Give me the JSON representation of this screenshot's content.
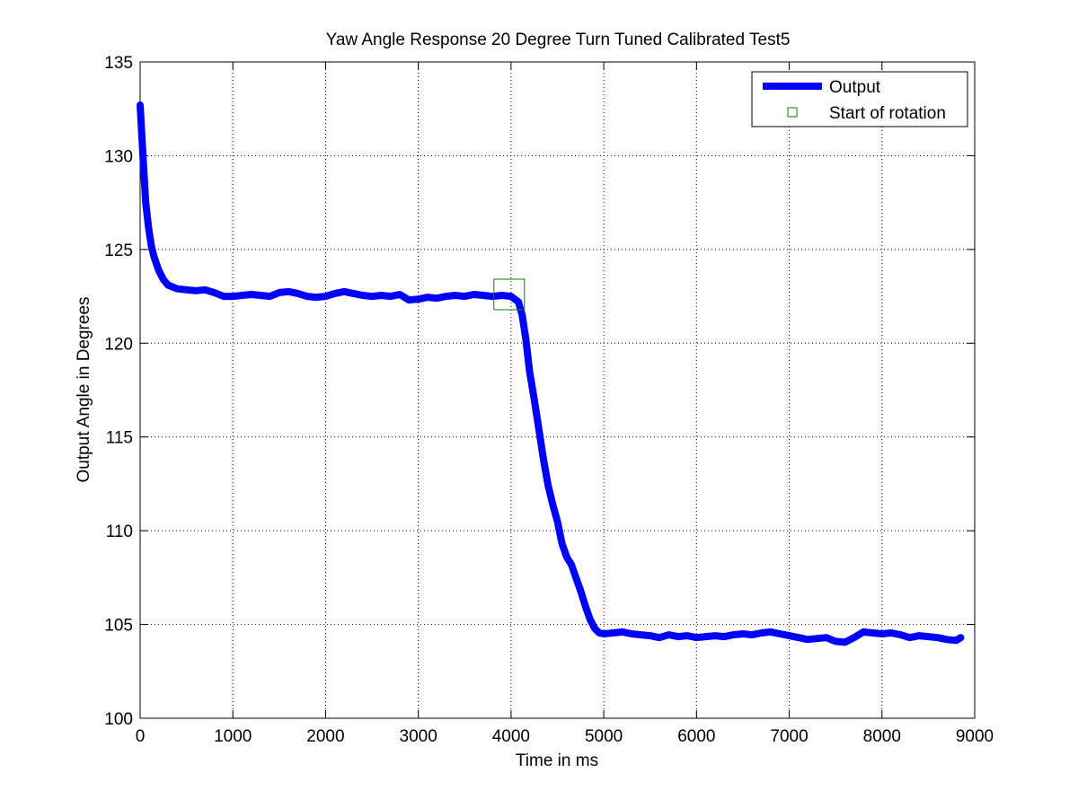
{
  "chart_data": {
    "type": "line",
    "title": "Yaw Angle Response 20 Degree Turn Tuned Calibrated Test5",
    "xlabel": "Time in ms",
    "ylabel": "Output Angle in Degrees",
    "xlim": [
      0,
      9000
    ],
    "ylim": [
      100,
      135
    ],
    "x_ticks": [
      0,
      1000,
      2000,
      3000,
      4000,
      5000,
      6000,
      7000,
      8000,
      9000
    ],
    "y_ticks": [
      100,
      105,
      110,
      115,
      120,
      125,
      130,
      135
    ],
    "grid": true,
    "legend_position": "top-right",
    "series": [
      {
        "name": "Output",
        "color": "#0000ff",
        "style": "thick-line",
        "points": [
          [
            0,
            132.7
          ],
          [
            30,
            130
          ],
          [
            60,
            127.5
          ],
          [
            90,
            126.2
          ],
          [
            120,
            125.2
          ],
          [
            150,
            124.6
          ],
          [
            200,
            123.9
          ],
          [
            250,
            123.4
          ],
          [
            300,
            123.1
          ],
          [
            400,
            122.9
          ],
          [
            500,
            122.85
          ],
          [
            600,
            122.8
          ],
          [
            700,
            122.85
          ],
          [
            800,
            122.7
          ],
          [
            900,
            122.5
          ],
          [
            1000,
            122.5
          ],
          [
            1100,
            122.55
          ],
          [
            1200,
            122.6
          ],
          [
            1300,
            122.55
          ],
          [
            1400,
            122.5
          ],
          [
            1500,
            122.7
          ],
          [
            1600,
            122.75
          ],
          [
            1700,
            122.65
          ],
          [
            1800,
            122.5
          ],
          [
            1900,
            122.45
          ],
          [
            2000,
            122.5
          ],
          [
            2100,
            122.65
          ],
          [
            2200,
            122.75
          ],
          [
            2300,
            122.65
          ],
          [
            2400,
            122.55
          ],
          [
            2500,
            122.5
          ],
          [
            2600,
            122.55
          ],
          [
            2700,
            122.5
          ],
          [
            2800,
            122.6
          ],
          [
            2900,
            122.3
          ],
          [
            3000,
            122.35
          ],
          [
            3100,
            122.45
          ],
          [
            3200,
            122.4
          ],
          [
            3300,
            122.5
          ],
          [
            3400,
            122.55
          ],
          [
            3500,
            122.5
          ],
          [
            3600,
            122.6
          ],
          [
            3700,
            122.55
          ],
          [
            3800,
            122.5
          ],
          [
            3900,
            122.55
          ],
          [
            4000,
            122.5
          ],
          [
            4080,
            122.2
          ],
          [
            4120,
            121.5
          ],
          [
            4160,
            120.2
          ],
          [
            4200,
            118.5
          ],
          [
            4250,
            117.0
          ],
          [
            4300,
            115.4
          ],
          [
            4350,
            113.8
          ],
          [
            4400,
            112.4
          ],
          [
            4450,
            111.4
          ],
          [
            4500,
            110.5
          ],
          [
            4550,
            109.3
          ],
          [
            4600,
            108.6
          ],
          [
            4650,
            108.2
          ],
          [
            4700,
            107.5
          ],
          [
            4750,
            106.8
          ],
          [
            4800,
            106.0
          ],
          [
            4850,
            105.3
          ],
          [
            4900,
            104.8
          ],
          [
            4950,
            104.55
          ],
          [
            5000,
            104.5
          ],
          [
            5100,
            104.55
          ],
          [
            5200,
            104.6
          ],
          [
            5300,
            104.5
          ],
          [
            5400,
            104.45
          ],
          [
            5500,
            104.4
          ],
          [
            5600,
            104.3
          ],
          [
            5700,
            104.45
          ],
          [
            5800,
            104.35
          ],
          [
            5900,
            104.4
          ],
          [
            6000,
            104.3
          ],
          [
            6100,
            104.35
          ],
          [
            6200,
            104.4
          ],
          [
            6300,
            104.35
          ],
          [
            6400,
            104.45
          ],
          [
            6500,
            104.5
          ],
          [
            6600,
            104.45
          ],
          [
            6700,
            104.55
          ],
          [
            6800,
            104.6
          ],
          [
            6900,
            104.5
          ],
          [
            7000,
            104.4
          ],
          [
            7100,
            104.3
          ],
          [
            7200,
            104.2
          ],
          [
            7300,
            104.25
          ],
          [
            7400,
            104.3
          ],
          [
            7500,
            104.1
          ],
          [
            7600,
            104.05
          ],
          [
            7700,
            104.3
          ],
          [
            7800,
            104.6
          ],
          [
            7900,
            104.55
          ],
          [
            8000,
            104.5
          ],
          [
            8100,
            104.55
          ],
          [
            8200,
            104.45
          ],
          [
            8300,
            104.3
          ],
          [
            8400,
            104.4
          ],
          [
            8500,
            104.35
          ],
          [
            8600,
            104.3
          ],
          [
            8700,
            104.2
          ],
          [
            8800,
            104.15
          ],
          [
            8850,
            104.3
          ]
        ]
      },
      {
        "name": "Start of rotation",
        "color": "#008000",
        "style": "square-marker",
        "points": [
          [
            3980,
            122.6
          ]
        ]
      }
    ]
  }
}
